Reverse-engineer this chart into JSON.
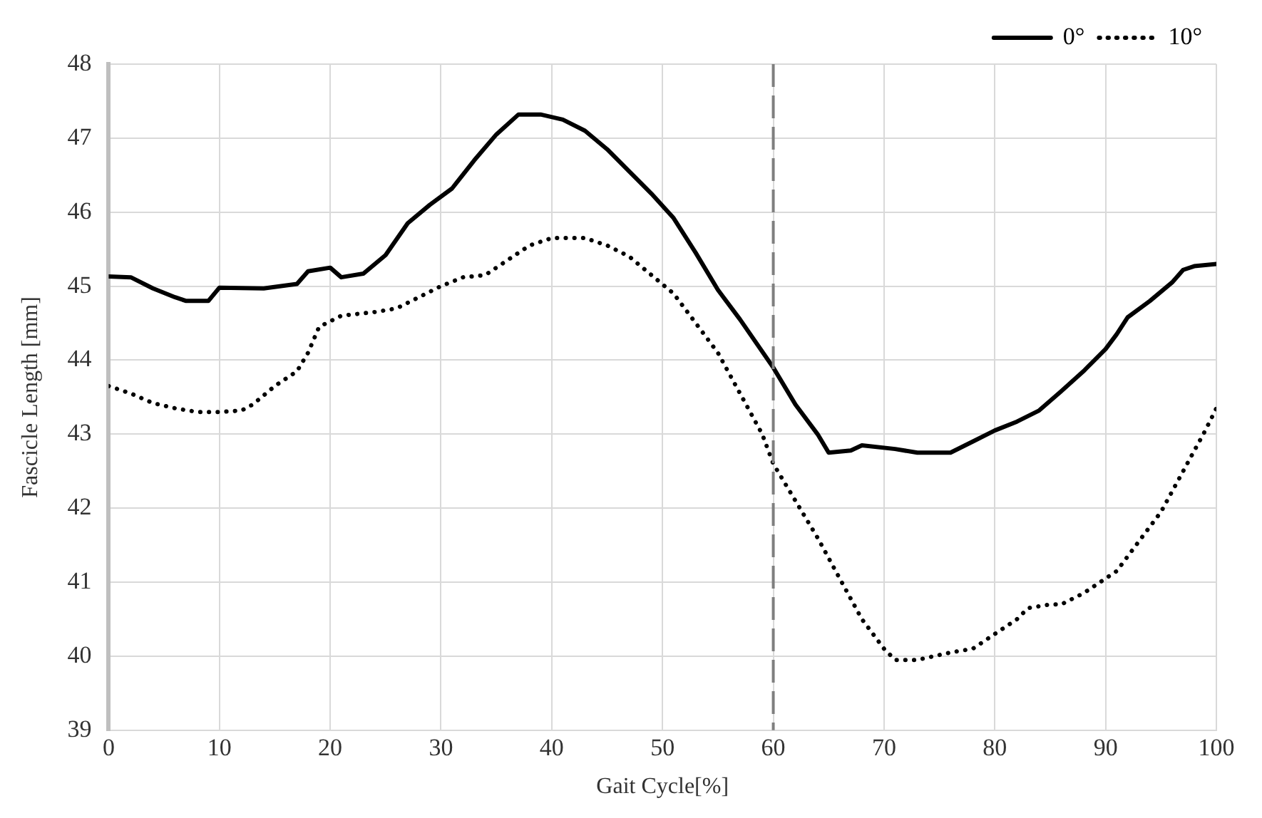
{
  "chart_data": {
    "type": "line",
    "xlabel": "Gait Cycle[%]",
    "ylabel": "Fascicle Length [mm]",
    "xlim": [
      0,
      100
    ],
    "xticks": [
      0,
      10,
      20,
      30,
      40,
      50,
      60,
      70,
      80,
      90,
      100
    ],
    "ylim": [
      39,
      48
    ],
    "yticks": [
      39,
      40,
      41,
      42,
      43,
      44,
      45,
      46,
      47,
      48
    ],
    "grid": true,
    "legend": "top right",
    "marker": "none",
    "ref_lines": [
      {
        "axis": "x",
        "value": 60,
        "color": "#7f7f7f",
        "line_style": "dashed"
      }
    ],
    "series": [
      {
        "name": "0°",
        "color": "#000000",
        "line_style": "solid",
        "x": [
          0,
          2,
          4,
          6,
          7,
          9,
          10,
          14,
          17,
          18,
          20,
          21,
          23,
          25,
          27,
          29,
          31,
          33,
          35,
          37,
          39,
          41,
          43,
          45,
          47,
          49,
          51,
          53,
          55,
          57,
          60,
          62,
          64,
          65,
          67,
          68,
          71,
          73,
          76,
          78,
          80,
          82,
          84,
          86,
          88,
          90,
          91,
          92,
          94,
          96,
          97,
          98,
          100
        ],
        "values": [
          45.13,
          45.12,
          44.97,
          44.85,
          44.8,
          44.8,
          44.98,
          44.97,
          45.03,
          45.2,
          45.25,
          45.12,
          45.17,
          45.42,
          45.85,
          46.1,
          46.32,
          46.7,
          47.05,
          47.32,
          47.32,
          47.25,
          47.1,
          46.85,
          46.55,
          46.25,
          45.92,
          45.45,
          44.95,
          44.55,
          43.9,
          43.4,
          43.0,
          42.75,
          42.78,
          42.85,
          42.8,
          42.75,
          42.75,
          42.9,
          43.05,
          43.17,
          43.32,
          43.58,
          43.85,
          44.15,
          44.35,
          44.58,
          44.8,
          45.05,
          45.22,
          45.27,
          45.3
        ]
      },
      {
        "name": "10°",
        "color": "#000000",
        "line_style": "dotted",
        "x": [
          0,
          2,
          4,
          6,
          8,
          10,
          12,
          13,
          15,
          17,
          18,
          19,
          21,
          24,
          26,
          28,
          30,
          32,
          34,
          36,
          38,
          40,
          43,
          45,
          47,
          49,
          51,
          53,
          55,
          57,
          59,
          60,
          62,
          64,
          66,
          68,
          70,
          71,
          73,
          76,
          78,
          80,
          82,
          83,
          85,
          86,
          88,
          90,
          91,
          93,
          95,
          97,
          99,
          100
        ],
        "values": [
          43.65,
          43.55,
          43.42,
          43.35,
          43.3,
          43.3,
          43.32,
          43.4,
          43.65,
          43.85,
          44.1,
          44.45,
          44.6,
          44.65,
          44.7,
          44.85,
          45.0,
          45.12,
          45.15,
          45.35,
          45.55,
          45.65,
          45.65,
          45.55,
          45.4,
          45.15,
          44.9,
          44.5,
          44.1,
          43.55,
          43.0,
          42.6,
          42.1,
          41.6,
          41.05,
          40.5,
          40.1,
          39.95,
          39.95,
          40.05,
          40.1,
          40.3,
          40.5,
          40.65,
          40.7,
          40.7,
          40.85,
          41.05,
          41.15,
          41.55,
          41.95,
          42.5,
          43.05,
          43.35
        ]
      }
    ]
  }
}
